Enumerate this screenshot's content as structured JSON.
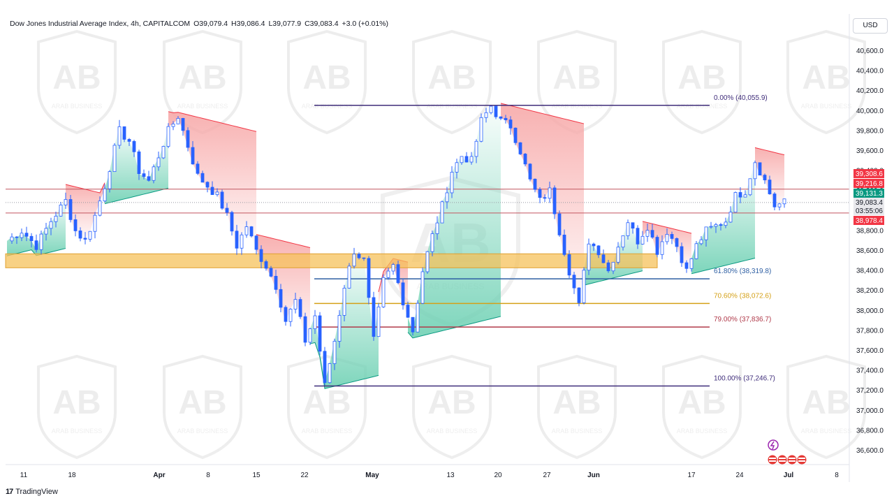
{
  "header": {
    "symbol": "Dow Jones Industrial Average Index, 4h, CAPITALCOM",
    "open": "O39,079.4",
    "high": "H39,086.4",
    "low": "L39,077.9",
    "close": "C39,083.4",
    "change": "+3.0 (+0.01%)"
  },
  "currency_button": "USD",
  "footer": {
    "brand": "TradingView",
    "logo": "17"
  },
  "watermark": {
    "text": "ARAB BUSINESS",
    "logo": "AB"
  },
  "colors": {
    "up_candle": "#2962ff",
    "axis_text": "#131722",
    "fib_main": "#3f2d7a",
    "fib_618": "#2e5fa3",
    "fib_706": "#d4a017",
    "fib_79": "#b03a4a",
    "zone_fill": "#f6c15b",
    "red_fill": "#f7a8a8",
    "green_fill": "#6fd1b4"
  },
  "chart_data": {
    "type": "candlestick",
    "interval": "4h",
    "y_axis": {
      "min": 36450,
      "max": 40750,
      "ticks": [
        40600,
        40400,
        40200,
        40000,
        39800,
        39600,
        39400,
        39200,
        39000,
        38800,
        38600,
        38400,
        38200,
        38000,
        37800,
        37600,
        37400,
        37200,
        37000,
        36800,
        36600
      ],
      "tick_labels": [
        "40,600.0",
        "40,400.0",
        "40,200.0",
        "40,000.0",
        "39,800.0",
        "39,600.0",
        "39,400.0",
        "39,200.0",
        "39,000.0",
        "38,800.0",
        "38,600.0",
        "38,400.0",
        "38,200.0",
        "38,000.0",
        "37,800.0",
        "37,600.0",
        "37,400.0",
        "37,200.0",
        "37,000.0",
        "36,800.0",
        "36,600.0"
      ]
    },
    "x_axis": {
      "labels": [
        "11",
        "18",
        "Apr",
        "8",
        "15",
        "22",
        "May",
        "13",
        "20",
        "27",
        "Jun",
        "17",
        "24",
        "Jul",
        "8"
      ],
      "bold": [
        false,
        false,
        true,
        false,
        false,
        false,
        true,
        false,
        false,
        false,
        true,
        false,
        false,
        true,
        false
      ]
    },
    "price_path": [
      [
        0,
        38700
      ],
      [
        3,
        38800
      ],
      [
        6,
        38650
      ],
      [
        9,
        38900
      ],
      [
        12,
        39100
      ],
      [
        14,
        38800
      ],
      [
        16,
        38700
      ],
      [
        18,
        38950
      ],
      [
        20,
        39250
      ],
      [
        23,
        39800
      ],
      [
        25,
        39700
      ],
      [
        27,
        39400
      ],
      [
        29,
        39300
      ],
      [
        31,
        39550
      ],
      [
        33,
        39800
      ],
      [
        35,
        39950
      ],
      [
        37,
        39650
      ],
      [
        39,
        39350
      ],
      [
        41,
        39250
      ],
      [
        43,
        39150
      ],
      [
        45,
        38950
      ],
      [
        47,
        38650
      ],
      [
        49,
        38850
      ],
      [
        51,
        38600
      ],
      [
        53,
        38450
      ],
      [
        55,
        38250
      ],
      [
        57,
        37900
      ],
      [
        59,
        38100
      ],
      [
        61,
        37700
      ],
      [
        63,
        37950
      ],
      [
        65,
        37250
      ],
      [
        67,
        37700
      ],
      [
        69,
        38250
      ],
      [
        71,
        38600
      ],
      [
        73,
        38500
      ],
      [
        75,
        37700
      ],
      [
        77,
        38300
      ],
      [
        79,
        38450
      ],
      [
        81,
        38100
      ],
      [
        83,
        37800
      ],
      [
        85,
        38400
      ],
      [
        87,
        38750
      ],
      [
        89,
        39050
      ],
      [
        91,
        39400
      ],
      [
        93,
        39550
      ],
      [
        95,
        39500
      ],
      [
        97,
        39900
      ],
      [
        99,
        40050
      ],
      [
        101,
        39900
      ],
      [
        103,
        39850
      ],
      [
        105,
        39600
      ],
      [
        107,
        39300
      ],
      [
        109,
        39100
      ],
      [
        111,
        39200
      ],
      [
        113,
        38800
      ],
      [
        115,
        38400
      ],
      [
        117,
        38050
      ],
      [
        119,
        38700
      ],
      [
        121,
        38600
      ],
      [
        123,
        38400
      ],
      [
        125,
        38650
      ],
      [
        127,
        38900
      ],
      [
        129,
        38700
      ],
      [
        131,
        38850
      ],
      [
        133,
        38600
      ],
      [
        135,
        38800
      ],
      [
        137,
        38650
      ],
      [
        139,
        38400
      ],
      [
        141,
        38650
      ],
      [
        143,
        38800
      ],
      [
        145,
        38850
      ],
      [
        147,
        38900
      ],
      [
        149,
        39150
      ],
      [
        151,
        39200
      ],
      [
        153,
        39500
      ],
      [
        155,
        39300
      ],
      [
        157,
        39050
      ],
      [
        159,
        39083
      ]
    ],
    "last_index": 159,
    "fibonacci": [
      {
        "label": "0.00% (40,055.9)",
        "value": 40055.9
      },
      {
        "label": "61.80% (38,319.8)",
        "value": 38319.8
      },
      {
        "label": "70.60% (38,072.6)",
        "value": 38072.6
      },
      {
        "label": "79.00% (37,836.7)",
        "value": 37836.7
      },
      {
        "label": "100.00% (37,246.7)",
        "value": 37246.7
      }
    ],
    "zone": {
      "low": 38430,
      "high": 38570
    },
    "horizontal_lines": [
      39216.8,
      38978.4
    ],
    "price_badges": [
      {
        "label": "39,308.6",
        "value": 39308.6,
        "color": "#f23645"
      },
      {
        "label": "39,216.8",
        "value": 39216.8,
        "color": "#f23645"
      },
      {
        "label": "39,131.3",
        "value": 39131.3,
        "color": "#089981"
      },
      {
        "label": "39,083.4",
        "value": 39083.4,
        "color": "#e8e8ec"
      },
      {
        "label": "03:55:06",
        "value": 39000,
        "color": "#e8e8ec"
      },
      {
        "label": "38,978.4",
        "value": 38978.4,
        "color": "#f23645"
      }
    ]
  }
}
